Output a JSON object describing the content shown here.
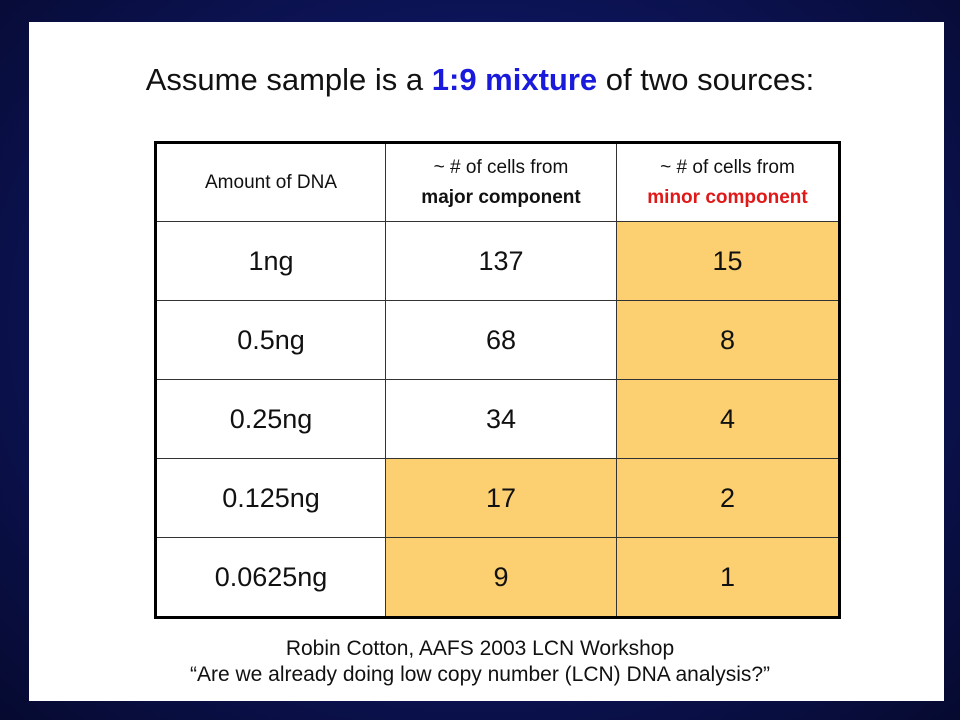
{
  "title": {
    "prefix": "Assume sample is a ",
    "highlight": "1:9 mixture",
    "suffix": " of two sources:"
  },
  "table": {
    "headers": {
      "amount": "Amount of DNA",
      "major_line1": "~ # of cells from",
      "major_line2": "major component",
      "minor_line1": "~ # of cells from",
      "minor_line2": "minor component"
    },
    "rows": [
      {
        "amount": "1ng",
        "major": "137",
        "minor": "15"
      },
      {
        "amount": "0.5ng",
        "major": "68",
        "minor": "8"
      },
      {
        "amount": "0.25ng",
        "major": "34",
        "minor": "4"
      },
      {
        "amount": "0.125ng",
        "major": "17",
        "minor": "2"
      },
      {
        "amount": "0.0625ng",
        "major": "9",
        "minor": "1"
      }
    ]
  },
  "citation": {
    "line1": "Robin Cotton, AAFS 2003 LCN Workshop",
    "line2": "“Are we already doing low copy number (LCN) DNA analysis?”"
  },
  "colors": {
    "highlight_fill": "#fcd071",
    "title_accent": "#1a1adc",
    "minor_label": "#e01818"
  }
}
